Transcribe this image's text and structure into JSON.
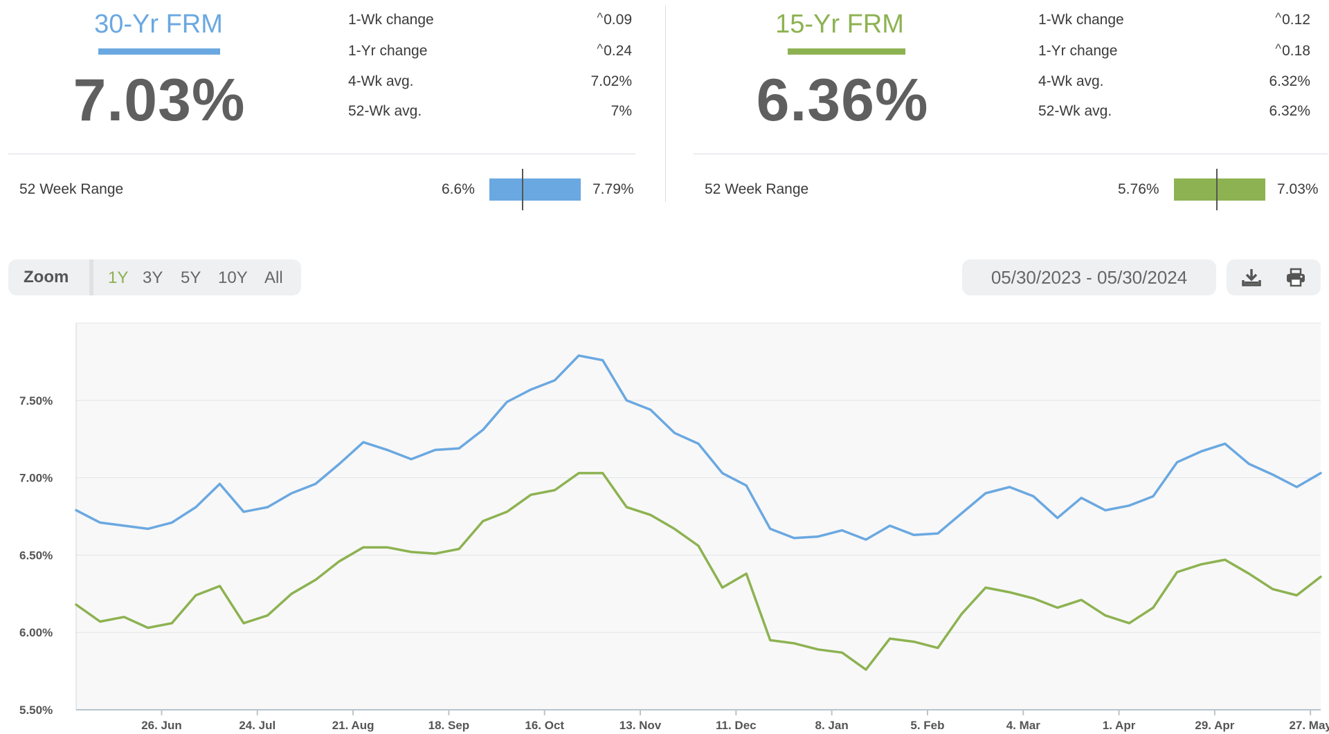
{
  "panels": [
    {
      "title": "30-Yr FRM",
      "rate": "7.03%",
      "color": "#6aa8e1",
      "stats": [
        {
          "label": "1-Wk change",
          "value": "0.09",
          "arrow": true
        },
        {
          "label": "1-Yr change",
          "value": "0.24",
          "arrow": true
        },
        {
          "label": "4-Wk avg.",
          "value": "7.02%",
          "arrow": false
        },
        {
          "label": "52-Wk avg.",
          "value": "7%",
          "arrow": false
        }
      ],
      "range_label": "52 Week Range",
      "range_min": "6.6%",
      "range_max": "7.79%",
      "range_current_fraction": 0.36
    },
    {
      "title": "15-Yr FRM",
      "rate": "6.36%",
      "color": "#8db251",
      "stats": [
        {
          "label": "1-Wk change",
          "value": "0.12",
          "arrow": true
        },
        {
          "label": "1-Yr change",
          "value": "0.18",
          "arrow": true
        },
        {
          "label": "4-Wk avg.",
          "value": "6.32%",
          "arrow": false
        },
        {
          "label": "52-Wk avg.",
          "value": "6.32%",
          "arrow": false
        }
      ],
      "range_label": "52 Week Range",
      "range_min": "5.76%",
      "range_max": "7.03%",
      "range_current_fraction": 0.47
    }
  ],
  "zoom": {
    "label": "Zoom",
    "options": [
      "1Y",
      "3Y",
      "5Y",
      "10Y",
      "All"
    ],
    "active": "1Y"
  },
  "date_range": "05/30/2023 - 05/30/2024",
  "tools": [
    "download-icon",
    "print-icon"
  ],
  "chart_data": {
    "type": "line",
    "x_tick_labels": [
      "26. Jun",
      "24. Jul",
      "21. Aug",
      "18. Sep",
      "16. Oct",
      "13. Nov",
      "11. Dec",
      "8. Jan",
      "5. Feb",
      "4. Mar",
      "1. Apr",
      "29. Apr",
      "27. May"
    ],
    "y_tick_labels": [
      "7.50%",
      "7.00%",
      "6.50%",
      "6.00%",
      "5.50%"
    ],
    "ylim": [
      5.5,
      8.0
    ],
    "grid": true,
    "legend": "none",
    "x_start": "2023-06-01",
    "x_end": "2024-05-30",
    "series": [
      {
        "color": "#6aa8e1",
        "values": [
          6.79,
          6.71,
          6.69,
          6.67,
          6.71,
          6.81,
          6.96,
          6.78,
          6.81,
          6.9,
          6.96,
          7.09,
          7.23,
          7.18,
          7.12,
          7.18,
          7.19,
          7.31,
          7.49,
          7.57,
          7.63,
          7.79,
          7.76,
          7.5,
          7.44,
          7.29,
          7.22,
          7.03,
          6.95,
          6.67,
          6.61,
          6.62,
          6.66,
          6.6,
          6.69,
          6.63,
          6.64,
          6.77,
          6.9,
          6.94,
          6.88,
          6.74,
          6.87,
          6.79,
          6.82,
          6.88,
          7.1,
          7.17,
          7.22,
          7.09,
          7.02,
          6.94,
          7.03
        ]
      },
      {
        "color": "#8db251",
        "values": [
          6.18,
          6.07,
          6.1,
          6.03,
          6.06,
          6.24,
          6.3,
          6.06,
          6.11,
          6.25,
          6.34,
          6.46,
          6.55,
          6.55,
          6.52,
          6.51,
          6.54,
          6.72,
          6.78,
          6.89,
          6.92,
          7.03,
          7.03,
          6.81,
          6.76,
          6.67,
          6.56,
          6.29,
          6.38,
          5.95,
          5.93,
          5.89,
          5.87,
          5.76,
          5.96,
          5.94,
          5.9,
          6.12,
          6.29,
          6.26,
          6.22,
          6.16,
          6.21,
          6.11,
          6.06,
          6.16,
          6.39,
          6.44,
          6.47,
          6.38,
          6.28,
          6.24,
          6.36
        ]
      }
    ]
  }
}
